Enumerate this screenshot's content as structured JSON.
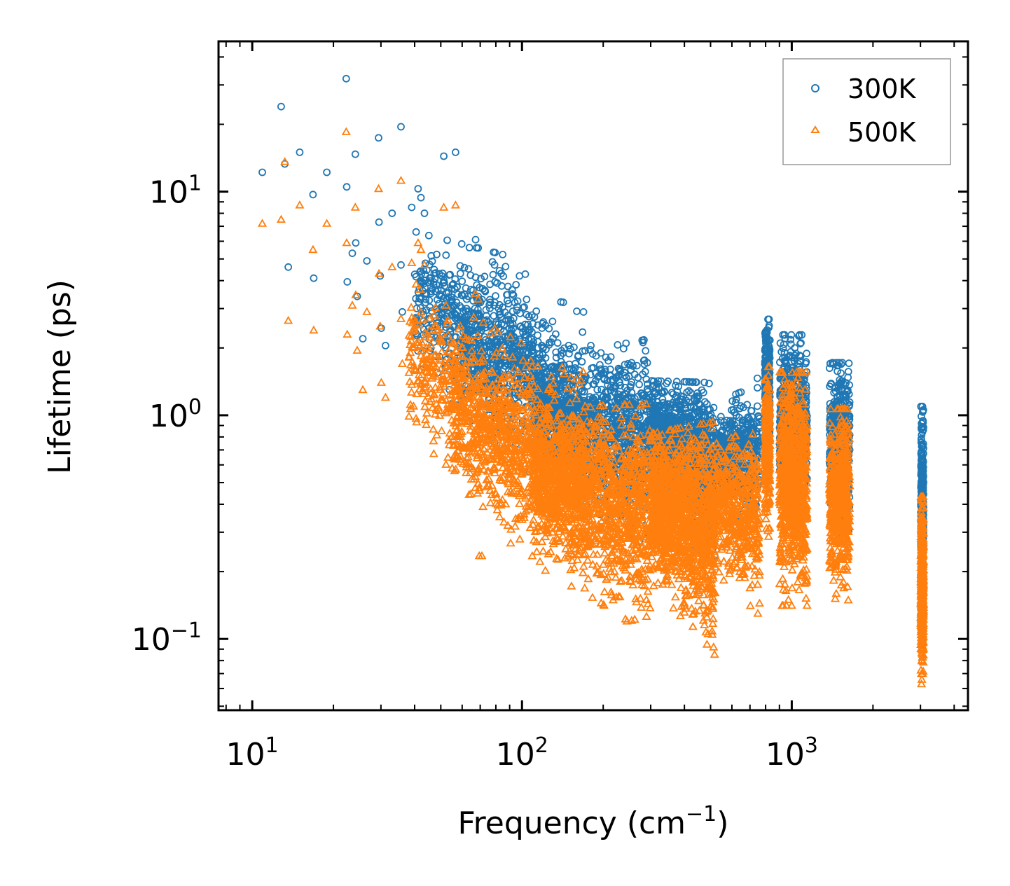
{
  "chart_data": {
    "type": "scatter",
    "xscale": "log",
    "yscale": "log",
    "xlabel": "Frequency (cm",
    "xlabel_sup": "−1",
    "xlabel_close": ")",
    "ylabel": "Lifetime (ps)",
    "xlim": [
      7.5,
      4500
    ],
    "ylim": [
      0.048,
      47
    ],
    "xticks": [
      {
        "value": 10,
        "base": "10",
        "exp": "1"
      },
      {
        "value": 100,
        "base": "10",
        "exp": "2"
      },
      {
        "value": 1000,
        "base": "10",
        "exp": "3"
      }
    ],
    "yticks": [
      {
        "value": 0.1,
        "base": "10",
        "exp": "−1"
      },
      {
        "value": 1,
        "base": "10",
        "exp": "0"
      },
      {
        "value": 10,
        "base": "10",
        "exp": "1"
      }
    ],
    "legend_position": "top-right",
    "series": [
      {
        "name": "300K",
        "marker": "circle",
        "color": "#1f77b4",
        "points": [
          [
            10.9,
            12.2
          ],
          [
            12.8,
            24
          ],
          [
            13.2,
            13.3
          ],
          [
            13.6,
            4.6
          ],
          [
            15.0,
            15.0
          ],
          [
            16.8,
            9.7
          ],
          [
            16.9,
            4.1
          ],
          [
            18.9,
            12.2
          ],
          [
            22.3,
            32
          ],
          [
            22.4,
            10.5
          ],
          [
            22.5,
            3.95
          ],
          [
            23.5,
            5.3
          ],
          [
            24.1,
            14.7
          ],
          [
            24.2,
            5.9
          ],
          [
            24.5,
            3.4
          ],
          [
            25.7,
            2.2
          ],
          [
            26.6,
            4.9
          ],
          [
            29.4,
            17.4
          ],
          [
            29.5,
            7.3
          ],
          [
            29.8,
            4.2
          ],
          [
            30.1,
            2.45
          ],
          [
            31.2,
            2.05
          ],
          [
            33.0,
            8.0
          ],
          [
            35.6,
            19.5
          ],
          [
            35.6,
            4.7
          ],
          [
            36.0,
            2.9
          ],
          [
            39.0,
            8.5
          ],
          [
            40.5,
            6.6
          ],
          [
            41.2,
            10.3
          ],
          [
            42.2,
            9.4
          ],
          [
            43.5,
            8.0
          ],
          [
            44.2,
            3.5
          ],
          [
            45.4,
            4.1
          ],
          [
            47.3,
            4.3
          ],
          [
            51.3,
            14.4
          ],
          [
            52.3,
            5.2
          ],
          [
            56.7,
            15.0
          ],
          [
            59.1,
            4.3
          ],
          [
            67.3,
            6.1
          ],
          [
            68.8,
            5.6
          ],
          [
            79.1,
            4.7
          ],
          [
            80.9,
            3.9
          ],
          [
            97.9,
            4.2
          ],
          [
            180.0,
            2.05
          ],
          [
            203.3,
            1.6
          ],
          [
            228.1,
            1.5
          ]
        ],
        "clusters": [
          {
            "x": [
              40,
              110
            ],
            "y_center": [
              3.2,
              1.9
            ],
            "y_spread": [
              0.35,
              0.45
            ],
            "count": 520
          },
          {
            "x": [
              60,
              170
            ],
            "y_center": [
              2.0,
              1.1
            ],
            "y_spread": [
              0.3,
              0.5
            ],
            "count": 520
          },
          {
            "x": [
              110,
              300
            ],
            "y_center": [
              1.05,
              0.78
            ],
            "y_spread": [
              0.25,
              0.5
            ],
            "count": 1200
          },
          {
            "x": [
              300,
              520
            ],
            "y_center": [
              0.85,
              0.55
            ],
            "y_spread": [
              0.25,
              0.45
            ],
            "count": 1200
          },
          {
            "x": [
              520,
              760
            ],
            "y_center": [
              0.7,
              0.65
            ],
            "y_spread": [
              0.2,
              0.4
            ],
            "count": 420
          },
          {
            "x": [
              795,
              830
            ],
            "y_center": [
              1.3,
              1.3
            ],
            "y_spread": [
              0.35,
              0.35
            ],
            "count": 300
          },
          {
            "x": [
              900,
              1140
            ],
            "y_center": [
              0.9,
              0.9
            ],
            "y_spread": [
              0.45,
              0.45
            ],
            "count": 700
          },
          {
            "x": [
              1380,
              1640
            ],
            "y_center": [
              0.75,
              0.75
            ],
            "y_spread": [
              0.4,
              0.4
            ],
            "count": 500
          },
          {
            "x": [
              3010,
              3080
            ],
            "y_center": [
              0.35,
              0.35
            ],
            "y_spread": [
              0.55,
              0.55
            ],
            "count": 360
          }
        ]
      },
      {
        "name": "500K",
        "marker": "triangle",
        "color": "#ff7f0e",
        "points": [
          [
            10.9,
            7.2
          ],
          [
            12.8,
            7.5
          ],
          [
            13.2,
            13.6
          ],
          [
            13.6,
            2.65
          ],
          [
            15.0,
            8.7
          ],
          [
            16.8,
            5.5
          ],
          [
            16.9,
            2.4
          ],
          [
            18.9,
            7.2
          ],
          [
            22.3,
            18.5
          ],
          [
            22.4,
            5.9
          ],
          [
            22.5,
            2.3
          ],
          [
            23.5,
            3.1
          ],
          [
            24.1,
            8.5
          ],
          [
            24.2,
            3.45
          ],
          [
            24.5,
            1.95
          ],
          [
            25.7,
            1.3
          ],
          [
            26.6,
            2.9
          ],
          [
            29.4,
            10.3
          ],
          [
            29.5,
            4.3
          ],
          [
            29.8,
            2.5
          ],
          [
            30.1,
            1.4
          ],
          [
            31.2,
            1.2
          ],
          [
            33.0,
            4.6
          ],
          [
            35.6,
            11.2
          ],
          [
            35.6,
            2.7
          ],
          [
            36.0,
            1.7
          ],
          [
            39.0,
            4.8
          ],
          [
            40.5,
            3.85
          ],
          [
            41.2,
            5.9
          ],
          [
            42.2,
            5.5
          ],
          [
            43.5,
            4.7
          ],
          [
            44.2,
            2.0
          ],
          [
            45.4,
            2.4
          ],
          [
            47.3,
            2.5
          ],
          [
            51.3,
            8.5
          ],
          [
            52.3,
            3.1
          ],
          [
            56.7,
            8.7
          ],
          [
            59.1,
            2.5
          ],
          [
            67.3,
            3.5
          ],
          [
            68.8,
            3.3
          ],
          [
            69.4,
            0.235
          ],
          [
            71.0,
            0.235
          ]
        ],
        "clusters": [
          {
            "x": [
              38,
              110
            ],
            "y_center": [
              1.9,
              0.7
            ],
            "y_spread": [
              0.35,
              0.5
            ],
            "count": 520
          },
          {
            "x": [
              55,
              170
            ],
            "y_center": [
              1.0,
              0.5
            ],
            "y_spread": [
              0.35,
              0.55
            ],
            "count": 700
          },
          {
            "x": [
              110,
              300
            ],
            "y_center": [
              0.52,
              0.36
            ],
            "y_spread": [
              0.35,
              0.55
            ],
            "count": 1400
          },
          {
            "x": [
              300,
              520
            ],
            "y_center": [
              0.4,
              0.3
            ],
            "y_spread": [
              0.35,
              0.55
            ],
            "count": 1400
          },
          {
            "x": [
              520,
              760
            ],
            "y_center": [
              0.4,
              0.35
            ],
            "y_spread": [
              0.3,
              0.45
            ],
            "count": 500
          },
          {
            "x": [
              795,
              830
            ],
            "y_center": [
              0.72,
              0.72
            ],
            "y_spread": [
              0.4,
              0.4
            ],
            "count": 320
          },
          {
            "x": [
              900,
              1140
            ],
            "y_center": [
              0.5,
              0.5
            ],
            "y_spread": [
              0.55,
              0.55
            ],
            "count": 800
          },
          {
            "x": [
              1380,
              1640
            ],
            "y_center": [
              0.42,
              0.42
            ],
            "y_spread": [
              0.45,
              0.45
            ],
            "count": 550
          },
          {
            "x": [
              3010,
              3080
            ],
            "y_center": [
              0.17,
              0.17
            ],
            "y_spread": [
              0.45,
              0.45
            ],
            "count": 420
          }
        ]
      }
    ]
  }
}
